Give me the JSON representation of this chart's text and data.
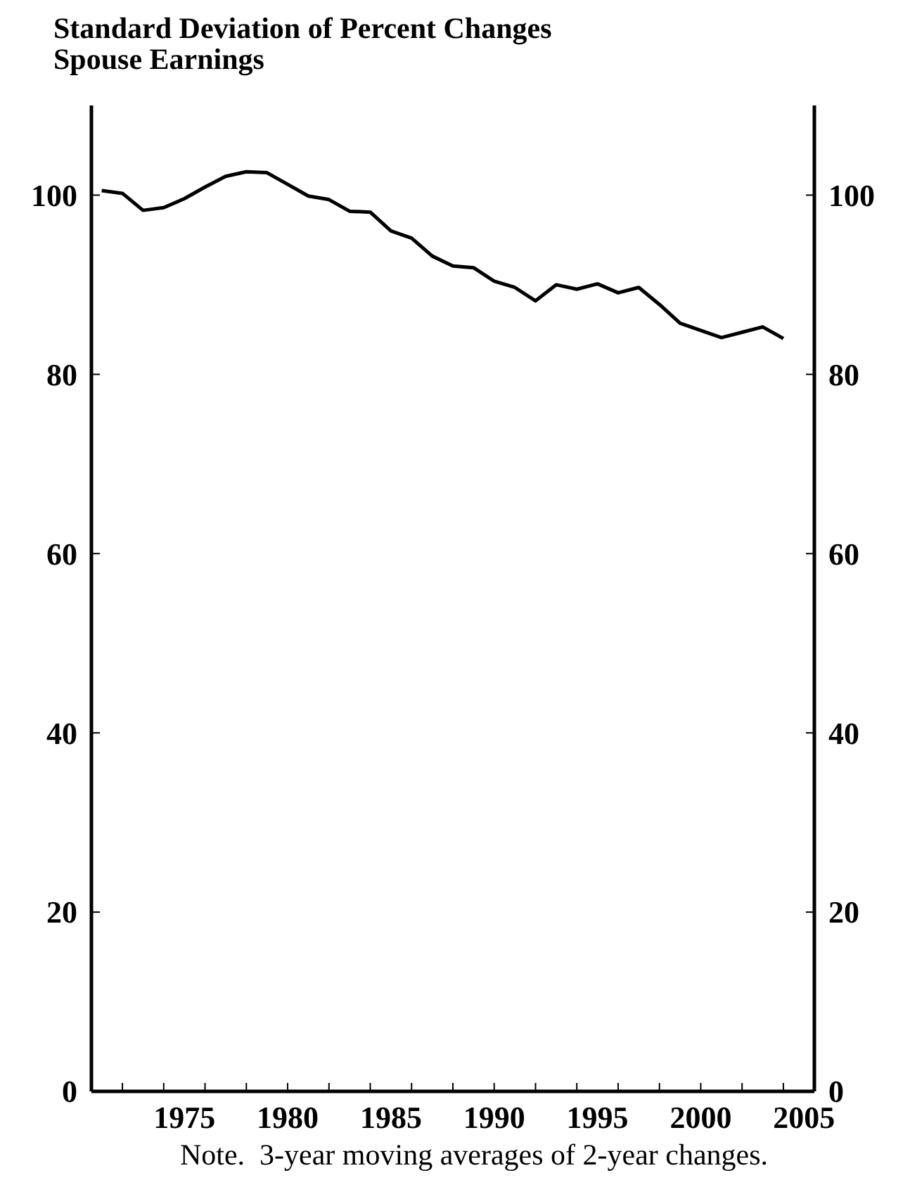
{
  "chart_data": {
    "type": "line",
    "title": "Standard Deviation of Percent Changes",
    "subtitle": "Spouse Earnings",
    "x": [
      1971,
      1972,
      1973,
      1974,
      1975,
      1976,
      1977,
      1978,
      1979,
      1980,
      1981,
      1982,
      1983,
      1984,
      1985,
      1986,
      1987,
      1988,
      1989,
      1990,
      1991,
      1992,
      1993,
      1994,
      1995,
      1996,
      1997,
      1998,
      1999,
      2000,
      2001,
      2002,
      2003,
      2004
    ],
    "series": [
      {
        "color": "#000000",
        "values": [
          100.5,
          100.2,
          98.3,
          98.6,
          99.6,
          100.9,
          102.1,
          102.6,
          102.5,
          101.2,
          99.9,
          99.5,
          98.2,
          98.1,
          96.0,
          95.2,
          93.2,
          92.1,
          91.9,
          90.4,
          89.7,
          88.2,
          90.0,
          89.5,
          90.1,
          89.1,
          89.7,
          87.8,
          85.7,
          84.9,
          84.1,
          84.7,
          85.3,
          84.0
        ]
      }
    ],
    "xlim": [
      1970.5,
      2005.5
    ],
    "xticks": [
      {
        "value": 1972,
        "label": null
      },
      {
        "value": 1974,
        "label": null
      },
      1975,
      {
        "value": 1976,
        "label": null
      },
      {
        "value": 1978,
        "label": null
      },
      1980,
      {
        "value": 1980,
        "label": null
      },
      {
        "value": 1982,
        "label": null
      },
      {
        "value": 1984,
        "label": null
      },
      1985,
      {
        "value": 1986,
        "label": null
      },
      {
        "value": 1988,
        "label": null
      },
      1990,
      {
        "value": 1990,
        "label": null
      },
      {
        "value": 1992,
        "label": null
      },
      {
        "value": 1994,
        "label": null
      },
      1995,
      {
        "value": 1996,
        "label": null
      },
      {
        "value": 1998,
        "label": null
      },
      2000,
      {
        "value": 2000,
        "label": null
      },
      {
        "value": 2002,
        "label": null
      },
      {
        "value": 2004,
        "label": null
      },
      2005
    ],
    "ylim": [
      0,
      110
    ],
    "yticks": [
      0,
      20,
      40,
      60,
      80,
      100
    ],
    "y2lim": [
      0,
      110
    ],
    "y2ticks": [
      0,
      20,
      40,
      60,
      80,
      100
    ],
    "grid": false,
    "marker": "none",
    "line_style": "solid",
    "annotations": [
      "Note.  3-year moving averages of 2-year changes."
    ]
  }
}
